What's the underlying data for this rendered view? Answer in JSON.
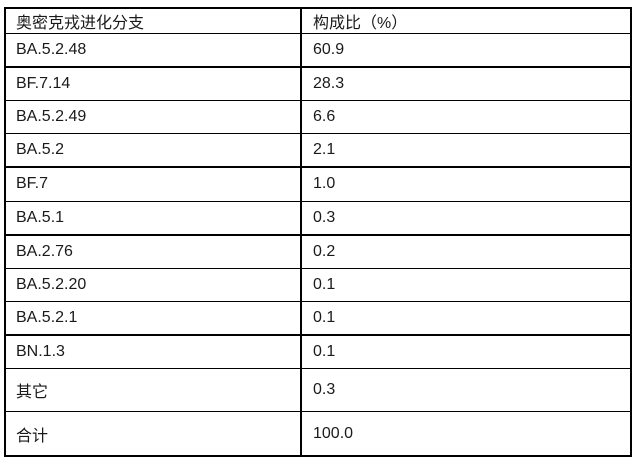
{
  "colors": {
    "background": "#ffffff",
    "border": "#000000",
    "text": "#1a1a1a"
  },
  "table": {
    "columns": [
      {
        "key": "branch",
        "label": "奥密克戎进化分支"
      },
      {
        "key": "percent",
        "label": "构成比（%）"
      }
    ],
    "rows": [
      {
        "branch": "BA.5.2.48",
        "percent": "60.9"
      },
      {
        "branch": "BF.7.14",
        "percent": "28.3"
      },
      {
        "branch": "BA.5.2.49",
        "percent": "6.6"
      },
      {
        "branch": "BA.5.2",
        "percent": "2.1"
      },
      {
        "branch": "BF.7",
        "percent": "1.0"
      },
      {
        "branch": "BA.5.1",
        "percent": "0.3"
      },
      {
        "branch": "BA.2.76",
        "percent": "0.2"
      },
      {
        "branch": "BA.5.2.20",
        "percent": "0.1"
      },
      {
        "branch": "BA.5.2.1",
        "percent": "0.1"
      },
      {
        "branch": "BN.1.3",
        "percent": "0.1"
      },
      {
        "branch": "其它",
        "percent": "0.3"
      },
      {
        "branch": "合计",
        "percent": "100.0"
      }
    ]
  },
  "chart_data": {
    "type": "table",
    "title": "",
    "columns": [
      "奥密克戎进化分支",
      "构成比（%）"
    ],
    "categories": [
      "BA.5.2.48",
      "BF.7.14",
      "BA.5.2.49",
      "BA.5.2",
      "BF.7",
      "BA.5.1",
      "BA.2.76",
      "BA.5.2.20",
      "BA.5.2.1",
      "BN.1.3",
      "其它",
      "合计"
    ],
    "values": [
      60.9,
      28.3,
      6.6,
      2.1,
      1.0,
      0.3,
      0.2,
      0.1,
      0.1,
      0.1,
      0.3,
      100.0
    ]
  }
}
